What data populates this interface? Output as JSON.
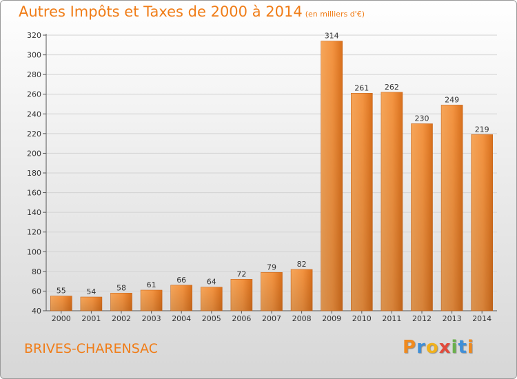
{
  "header": {
    "title": "Autres Impôts et Taxes de 2000 à 2014",
    "subtitle": "(en milliers d'€)"
  },
  "footer": {
    "commune": "BRIVES-CHARENSAC",
    "logo_letters": [
      "P",
      "r",
      "o",
      "x",
      "i",
      "t",
      "i"
    ],
    "logo_colors": [
      "#f08a1e",
      "#3f8fd8",
      "#f0b11e",
      "#e24a3b",
      "#6ab04c",
      "#3f8fd8",
      "#f08a1e"
    ]
  },
  "chart_data": {
    "type": "bar",
    "categories": [
      "2000",
      "2001",
      "2002",
      "2003",
      "2004",
      "2005",
      "2006",
      "2007",
      "2008",
      "2009",
      "2010",
      "2011",
      "2012",
      "2013",
      "2014"
    ],
    "values": [
      55,
      54,
      58,
      61,
      66,
      64,
      72,
      79,
      82,
      314,
      261,
      262,
      230,
      249,
      219
    ],
    "title": "Autres Impôts et Taxes de 2000 à 2014",
    "xlabel": "",
    "ylabel": "",
    "ylim": [
      40,
      320
    ],
    "yticks": [
      40,
      60,
      80,
      100,
      120,
      140,
      160,
      180,
      200,
      220,
      240,
      260,
      280,
      300,
      320
    ],
    "grid": true,
    "bar_color": "#f08a2a"
  }
}
